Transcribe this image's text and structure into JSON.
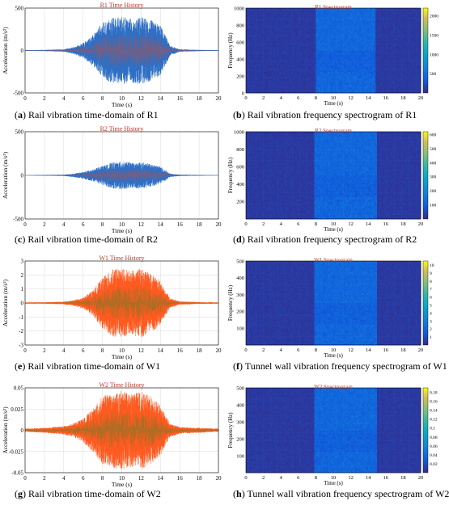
{
  "chart_data": [
    {
      "type": "line",
      "panel_letter": "a",
      "caption": "Rail vibration time-domain of R1",
      "title": "R1 Time History",
      "xlabel": "Time (s)",
      "ylabel": "Acceleration (m/s²)",
      "xlim": [
        0,
        20
      ],
      "ylim": [
        -500,
        500
      ],
      "xticks": [
        "0",
        "2",
        "4",
        "6",
        "8",
        "10",
        "12",
        "14",
        "16",
        "18",
        "20"
      ],
      "yticks": [
        "500",
        "0",
        "-500"
      ],
      "series": [
        {
          "color": "#2f6fc4",
          "overlay_color": "#d94a2a"
        }
      ],
      "envelope_time_s": [
        0,
        2,
        4,
        5,
        6,
        7,
        8,
        9,
        10,
        11,
        12,
        13,
        14,
        14.5,
        15,
        16,
        18,
        20
      ],
      "envelope_amplitude": [
        5,
        8,
        15,
        40,
        90,
        180,
        330,
        390,
        400,
        380,
        400,
        360,
        300,
        180,
        60,
        15,
        8,
        5
      ]
    },
    {
      "type": "heatmap",
      "panel_letter": "b",
      "caption": "Rail vibration frequency spectrogram of R1",
      "title": "R1 Spectrogram",
      "xlabel": "Time (s)",
      "ylabel": "Frequency (Hz)",
      "xlim": [
        0,
        20
      ],
      "ylim": [
        0,
        1000
      ],
      "xticks": [
        "0",
        "2",
        "4",
        "6",
        "8",
        "10",
        "12",
        "14",
        "16",
        "18",
        "20"
      ],
      "yticks": [
        "1000",
        "800",
        "600",
        "400",
        "200",
        "0"
      ],
      "colorbar_range": [
        0,
        2200
      ],
      "colorbar_ticks": [
        "2000",
        "1500",
        "1000",
        "500"
      ],
      "active_window_s": [
        8,
        14.8
      ],
      "colormap": "parula"
    },
    {
      "type": "line",
      "panel_letter": "c",
      "caption": "Rail vibration time-domain of R2",
      "title": "R2 Time History",
      "xlabel": "Time (s)",
      "ylabel": "Acceleration (m/s²)",
      "xlim": [
        0,
        20
      ],
      "ylim": [
        -500,
        500
      ],
      "xticks": [
        "0",
        "2",
        "4",
        "6",
        "8",
        "10",
        "12",
        "14",
        "16",
        "18",
        "20"
      ],
      "yticks": [
        "500",
        "0",
        "-500"
      ],
      "series": [
        {
          "color": "#2f6fc4",
          "overlay_color": "#d94a2a"
        }
      ],
      "envelope_time_s": [
        0,
        2,
        4,
        5,
        6,
        7,
        8,
        9,
        10,
        11,
        12,
        13,
        14,
        14.5,
        15,
        16,
        18,
        20
      ],
      "envelope_amplitude": [
        3,
        5,
        8,
        20,
        40,
        70,
        110,
        150,
        160,
        150,
        155,
        130,
        100,
        60,
        20,
        8,
        5,
        3
      ]
    },
    {
      "type": "heatmap",
      "panel_letter": "d",
      "caption": "Rail vibration frequency spectrogram of R2",
      "title": "R2 Spectrogram",
      "xlabel": "Time (s)",
      "ylabel": "Frequency (Hz)",
      "xlim": [
        0,
        20
      ],
      "ylim": [
        0,
        1000
      ],
      "xticks": [
        "0",
        "2",
        "4",
        "6",
        "8",
        "10",
        "12",
        "14",
        "16",
        "18",
        "20"
      ],
      "yticks": [
        "1000",
        "800",
        "600",
        "400",
        "200"
      ],
      "colorbar_range": [
        0,
        620
      ],
      "colorbar_ticks": [
        "600",
        "500",
        "400",
        "300",
        "200",
        "100"
      ],
      "active_window_s": [
        7.8,
        15
      ],
      "colormap": "parula"
    },
    {
      "type": "line",
      "panel_letter": "e",
      "caption": "Rail vibration time-domain of W1",
      "title": "W1 Time History",
      "xlabel": "Time (s)",
      "ylabel": "Acceleration (m/s²)",
      "xlim": [
        0,
        20
      ],
      "ylim": [
        -3,
        3
      ],
      "xticks": [
        "0",
        "2",
        "4",
        "6",
        "8",
        "10",
        "12",
        "14",
        "16",
        "18",
        "20"
      ],
      "yticks": [
        "3",
        "2",
        "1",
        "0",
        "-1",
        "-2",
        "-3"
      ],
      "series": [
        {
          "color": "#ff5a1f",
          "overlay_color": "#3c8a2e"
        }
      ],
      "envelope_time_s": [
        0,
        2,
        4,
        5,
        6,
        7,
        8,
        9,
        10,
        11,
        12,
        13,
        14,
        14.5,
        15,
        16,
        18,
        20
      ],
      "envelope_amplitude": [
        0.05,
        0.06,
        0.1,
        0.2,
        0.4,
        0.9,
        1.8,
        2.4,
        2.5,
        2.3,
        2.5,
        2.1,
        1.6,
        0.9,
        0.35,
        0.12,
        0.07,
        0.05
      ]
    },
    {
      "type": "heatmap",
      "panel_letter": "f",
      "caption": "Tunnel wall vibration frequency spectrogram of W1",
      "title": "W1 Spectrogram",
      "xlabel": "Time (s)",
      "ylabel": "Frequency (Hz)",
      "xlim": [
        0,
        20
      ],
      "ylim": [
        0,
        500
      ],
      "xticks": [
        "0",
        "2",
        "4",
        "6",
        "8",
        "10",
        "12",
        "14",
        "16",
        "18",
        "20"
      ],
      "yticks": [
        "500",
        "400",
        "300",
        "200",
        "100"
      ],
      "colorbar_range": [
        0,
        10.5
      ],
      "colorbar_ticks": [
        "10",
        "9",
        "8",
        "7",
        "6",
        "5",
        "4",
        "3",
        "2",
        "1"
      ],
      "active_window_s": [
        7.8,
        15
      ],
      "colormap": "parula"
    },
    {
      "type": "line",
      "panel_letter": "g",
      "caption": "Rail vibration time-domain of W2",
      "title": "W2 Time History",
      "xlabel": "Time (s)",
      "ylabel": "Acceleration (m/s²)",
      "xlim": [
        0,
        20
      ],
      "ylim": [
        -0.05,
        0.05
      ],
      "xticks": [
        "0",
        "2",
        "4",
        "6",
        "8",
        "10",
        "12",
        "14",
        "16",
        "18",
        "20"
      ],
      "yticks": [
        "0.05",
        "0.025",
        "0",
        "-0.025",
        "-0.05"
      ],
      "series": [
        {
          "color": "#ff5a1f",
          "overlay_color": "#3c8a2e"
        }
      ],
      "envelope_time_s": [
        0,
        2,
        4,
        5,
        6,
        7,
        8,
        9,
        10,
        11,
        12,
        13,
        14,
        14.5,
        15,
        16,
        18,
        20
      ],
      "envelope_amplitude": [
        0.002,
        0.003,
        0.005,
        0.008,
        0.014,
        0.025,
        0.04,
        0.045,
        0.047,
        0.043,
        0.046,
        0.04,
        0.03,
        0.018,
        0.008,
        0.004,
        0.003,
        0.002
      ]
    },
    {
      "type": "heatmap",
      "panel_letter": "h",
      "caption": "Tunnel wall vibration frequency spectrogram of W2",
      "title": "W2 Spectrogram",
      "xlabel": "Time (s)",
      "ylabel": "Frequency (Hz)",
      "xlim": [
        0,
        20
      ],
      "ylim": [
        0,
        500
      ],
      "xticks": [
        "0",
        "2",
        "4",
        "6",
        "8",
        "10",
        "12",
        "14",
        "16",
        "18",
        "20"
      ],
      "yticks": [
        "500",
        "400",
        "300",
        "200",
        "100"
      ],
      "colorbar_range": [
        0,
        0.19
      ],
      "colorbar_ticks": [
        "0.18",
        "0.16",
        "0.14",
        "0.12",
        "0.1",
        "0.08",
        "0.06",
        "0.04",
        "0.02"
      ],
      "active_window_s": [
        7.8,
        15
      ],
      "colormap": "parula"
    }
  ]
}
